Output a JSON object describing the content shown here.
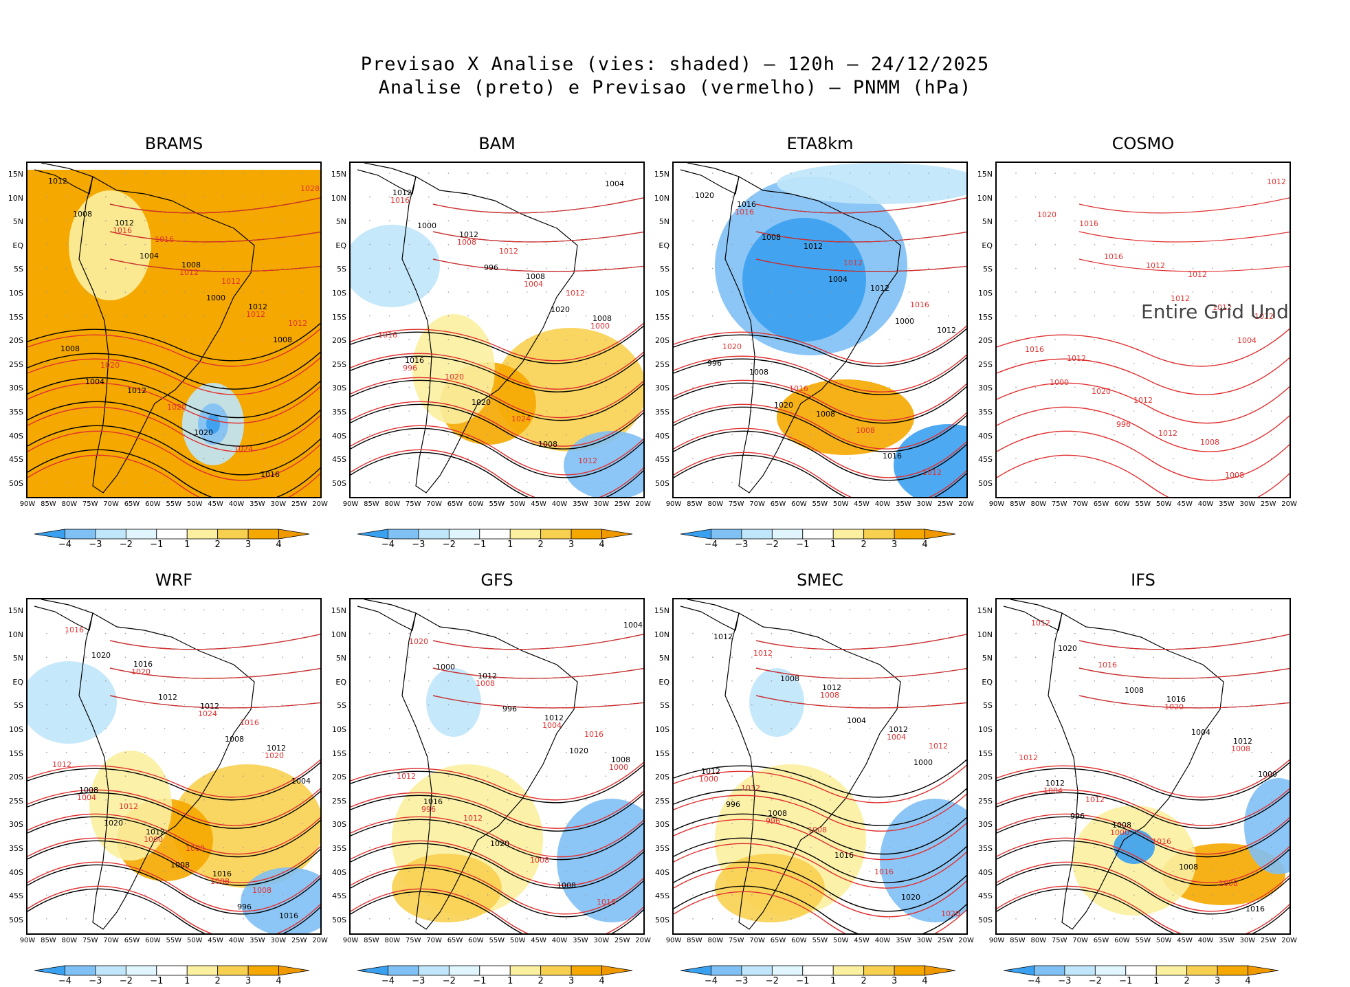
{
  "figure": {
    "title_line1": "Previsao X Analise (vies: shaded) — 120h — 24/12/2025",
    "title_line2": "Analise (preto) e Previsao (vermelho) — PNMM (hPa)"
  },
  "axes": {
    "lat_labels": [
      "15N",
      "10N",
      "5N",
      "EQ",
      "5S",
      "10S",
      "15S",
      "20S",
      "25S",
      "30S",
      "35S",
      "40S",
      "45S",
      "50S"
    ],
    "lon_labels": [
      "90W",
      "85W",
      "80W",
      "75W",
      "70W",
      "65W",
      "60W",
      "55W",
      "50W",
      "45W",
      "40W",
      "35W",
      "30W",
      "25W",
      "20W"
    ]
  },
  "colorbar": {
    "labels": [
      "−4",
      "−3",
      "−2",
      "−1",
      "1",
      "2",
      "3",
      "4"
    ],
    "colors": [
      "#3aa0f0",
      "#7fc0f5",
      "#c0e6fb",
      "#e0f5fd",
      "#ffffff",
      "#fbf0a0",
      "#f8d050",
      "#f5a800",
      "#f09800"
    ]
  },
  "panels": [
    {
      "name": "BRAMS",
      "bias": "warm-strong",
      "undefined_text": "",
      "analysis_labels": [
        "1012",
        "1012",
        "1008",
        "1012",
        "1008",
        "1012",
        "1020",
        "1016",
        "1008",
        "1004",
        "1000",
        "1008",
        "1004"
      ],
      "forecast_labels": [
        "1016",
        "1012",
        "1012",
        "1020",
        "1020",
        "1024",
        "1028",
        "1016",
        "1012",
        "1012"
      ]
    },
    {
      "name": "BAM",
      "bias": "warm-south",
      "undefined_text": "",
      "analysis_labels": [
        "1012",
        "1012",
        "1008",
        "1008",
        "1016",
        "1020",
        "1008",
        "1004",
        "1000",
        "996",
        "1020"
      ],
      "forecast_labels": [
        "1012",
        "1012",
        "1016",
        "1020",
        "1024",
        "1012",
        "1016",
        "1008",
        "1004",
        "1000",
        "996"
      ]
    },
    {
      "name": "ETA8km",
      "bias": "cold-north",
      "undefined_text": "",
      "analysis_labels": [
        "1016",
        "1012",
        "1012",
        "1012",
        "1008",
        "1008",
        "1016",
        "1020",
        "1008",
        "1004",
        "1000",
        "996",
        "1020"
      ],
      "forecast_labels": [
        "1012",
        "1016",
        "1020",
        "1016",
        "1008",
        "1012",
        "1016"
      ]
    },
    {
      "name": "COSMO",
      "bias": "none",
      "undefined_text": "Entire Grid Und",
      "analysis_labels": [],
      "forecast_labels": [
        "1012",
        "1012",
        "1012",
        "1012",
        "1008",
        "1012",
        "1016",
        "1012",
        "1012",
        "1016",
        "1020",
        "1012",
        "1008",
        "1020",
        "1016",
        "1012",
        "1004",
        "1000",
        "996"
      ]
    },
    {
      "name": "WRF",
      "bias": "warm-south",
      "undefined_text": "",
      "analysis_labels": [
        "1016",
        "1012",
        "1012",
        "1008",
        "1012",
        "1016",
        "1016",
        "1020",
        "1012",
        "1008",
        "1004",
        "1020",
        "1008",
        "996"
      ],
      "forecast_labels": [
        "1016",
        "1012",
        "1012",
        "1008",
        "1008",
        "1016",
        "1020",
        "1024",
        "1020",
        "1004",
        "1000",
        "1008"
      ]
    },
    {
      "name": "GFS",
      "bias": "cold-se",
      "undefined_text": "",
      "analysis_labels": [
        "1012",
        "1012",
        "1008",
        "1016",
        "1020",
        "1008",
        "1004",
        "1000",
        "996",
        "1020"
      ],
      "forecast_labels": [
        "1016",
        "1012",
        "1012",
        "1008",
        "1016",
        "1020",
        "1008",
        "1004",
        "1000",
        "996"
      ]
    },
    {
      "name": "SMEC",
      "bias": "cold-se",
      "undefined_text": "",
      "analysis_labels": [
        "1012",
        "1012",
        "1012",
        "1008",
        "1016",
        "1020",
        "1012",
        "1008",
        "1004",
        "1000",
        "996"
      ],
      "forecast_labels": [
        "1012",
        "1012",
        "1008",
        "1016",
        "1020",
        "1012",
        "1008",
        "1004",
        "1000",
        "996"
      ]
    },
    {
      "name": "IFS",
      "bias": "warm-se",
      "undefined_text": "",
      "analysis_labels": [
        "1016",
        "1012",
        "1012",
        "1008",
        "1008",
        "1016",
        "1020",
        "1008",
        "1004",
        "1000",
        "996"
      ],
      "forecast_labels": [
        "1012",
        "1012",
        "1016",
        "1008",
        "1012",
        "1016",
        "1020",
        "1008",
        "1004",
        "1000"
      ]
    }
  ]
}
